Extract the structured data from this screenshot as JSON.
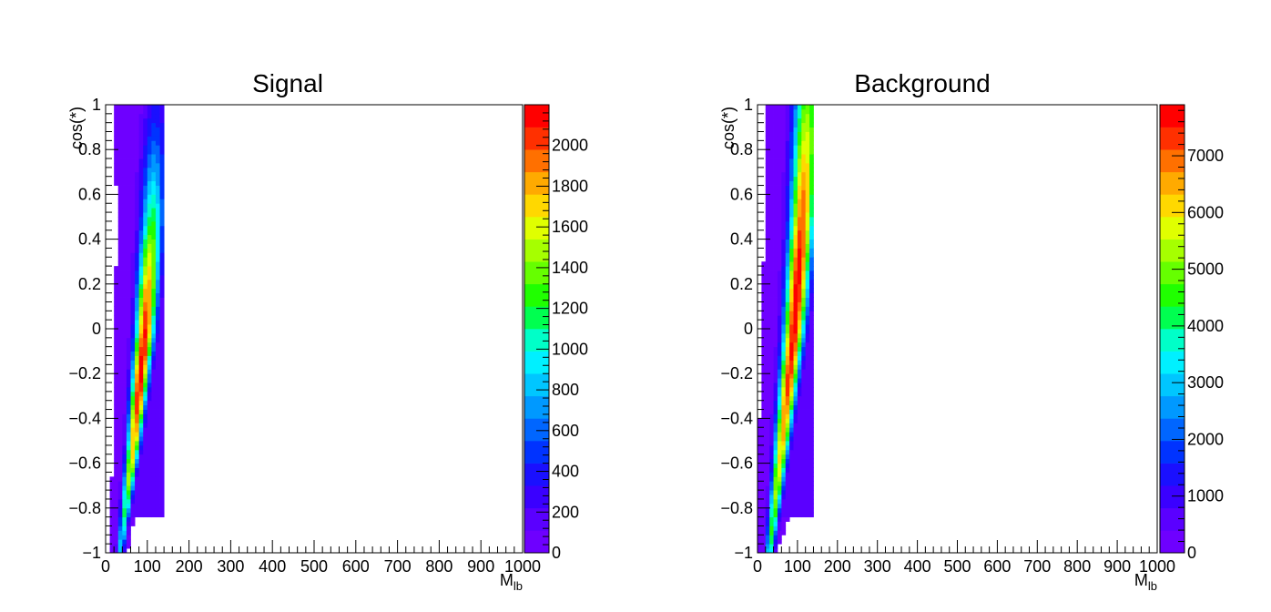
{
  "chart_data": [
    {
      "type": "heatmap",
      "title": "Signal",
      "xlabel_main": "M",
      "xlabel_sub": "lb",
      "ylabel": "cos(*)",
      "xlim": [
        0,
        1000
      ],
      "ylim": [
        -1,
        1
      ],
      "x_ticks": [
        "0",
        "100",
        "200",
        "300",
        "400",
        "500",
        "600",
        "700",
        "800",
        "900",
        "1000"
      ],
      "y_ticks": [
        "−1",
        "−0.8",
        "−0.6",
        "−0.4",
        "−0.2",
        "0",
        "0.2",
        "0.4",
        "0.6",
        "0.8",
        "1"
      ],
      "z_range": [
        0,
        2200
      ],
      "z_ticks": [
        "0",
        "200",
        "400",
        "600",
        "800",
        "1000",
        "1200",
        "1400",
        "1600",
        "1800",
        "2000"
      ],
      "z_tick_values": [
        0,
        200,
        400,
        600,
        800,
        1000,
        1200,
        1400,
        1600,
        1800,
        2000
      ],
      "distribution": {
        "shape": "ridge",
        "peak_z": 2150,
        "ridge_x": [
          [
            -1,
            35
          ],
          [
            -0.5,
            68
          ],
          [
            0,
            95
          ],
          [
            0.5,
            112
          ],
          [
            1,
            120
          ]
        ],
        "width_x": [
          [
            -1,
            6
          ],
          [
            -0.5,
            11
          ],
          [
            0,
            16
          ],
          [
            0.5,
            19
          ],
          [
            1,
            22
          ]
        ],
        "peak_cos": -0.15,
        "cos_sigma": 0.6,
        "x_cut": 140,
        "y_cut": -0.84,
        "low_tail_z": 60,
        "high_tail_z": 110
      }
    },
    {
      "type": "heatmap",
      "title": "Background",
      "xlabel_main": "M",
      "xlabel_sub": "lb",
      "ylabel": "cos(*)",
      "xlim": [
        0,
        1000
      ],
      "ylim": [
        -1,
        1
      ],
      "x_ticks": [
        "0",
        "100",
        "200",
        "300",
        "400",
        "500",
        "600",
        "700",
        "800",
        "900",
        "1000"
      ],
      "y_ticks": [
        "−1",
        "−0.8",
        "−0.6",
        "−0.4",
        "−0.2",
        "0",
        "0.2",
        "0.4",
        "0.6",
        "0.8",
        "1"
      ],
      "z_range": [
        0,
        7900
      ],
      "z_ticks": [
        "0",
        "1000",
        "2000",
        "3000",
        "4000",
        "5000",
        "6000",
        "7000"
      ],
      "z_tick_values": [
        0,
        1000,
        2000,
        3000,
        4000,
        5000,
        6000,
        7000
      ],
      "distribution": {
        "shape": "ridge",
        "peak_z": 7800,
        "ridge_x": [
          [
            -1,
            30
          ],
          [
            -0.5,
            62
          ],
          [
            0,
            92
          ],
          [
            0.5,
            112
          ],
          [
            1,
            125
          ]
        ],
        "width_x": [
          [
            -1,
            7
          ],
          [
            -0.5,
            13
          ],
          [
            0,
            18
          ],
          [
            0.5,
            21
          ],
          [
            1,
            24
          ]
        ],
        "peak_cos": 0.1,
        "cos_sigma": 0.95,
        "x_cut": 140,
        "y_cut": -0.92,
        "low_tail_z": 200,
        "high_tail_z": 500
      }
    }
  ]
}
